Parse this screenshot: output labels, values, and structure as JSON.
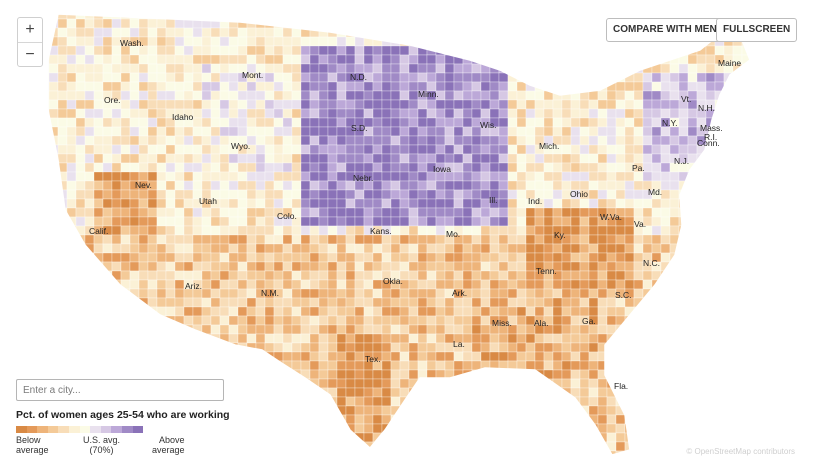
{
  "zoom": {
    "in_label": "+",
    "out_label": "−"
  },
  "buttons": {
    "compare": "COMPARE WITH MEN",
    "fullscreen": "FULLSCREEN"
  },
  "search": {
    "placeholder": "Enter a city..."
  },
  "legend": {
    "title": "Pct. of women ages 25-54 who are working",
    "low_line1": "Below",
    "low_line2": "average",
    "mid_line1": "U.S. avg.",
    "mid_line2": "(70%)",
    "high_line1": "Above",
    "high_line2": "average",
    "colors": [
      "#d98a45",
      "#e49a5a",
      "#eeb47a",
      "#f4ca98",
      "#f8ddb8",
      "#fbf1d6",
      "#fbfbe6",
      "#e9e1ee",
      "#d6c8e4",
      "#bca8d8",
      "#a08ac6",
      "#8a72b8"
    ]
  },
  "attribution": "© OpenStreetMap contributors",
  "states": [
    {
      "name": "Wash."
    },
    {
      "name": "Mont."
    },
    {
      "name": "N.D."
    },
    {
      "name": "Minn."
    },
    {
      "name": "Maine"
    },
    {
      "name": "Vt."
    },
    {
      "name": "N.H."
    },
    {
      "name": "N.Y."
    },
    {
      "name": "Mass."
    },
    {
      "name": "R.I."
    },
    {
      "name": "Conn."
    },
    {
      "name": "N.J."
    },
    {
      "name": "Ore."
    },
    {
      "name": "Idaho"
    },
    {
      "name": "S.D."
    },
    {
      "name": "Wis."
    },
    {
      "name": "Mich."
    },
    {
      "name": "Wyo."
    },
    {
      "name": "Nebr."
    },
    {
      "name": "Iowa"
    },
    {
      "name": "Pa."
    },
    {
      "name": "Ohio"
    },
    {
      "name": "Md."
    },
    {
      "name": "Nev."
    },
    {
      "name": "Utah"
    },
    {
      "name": "Ill."
    },
    {
      "name": "Ind."
    },
    {
      "name": "W.Va."
    },
    {
      "name": "Colo."
    },
    {
      "name": "Calif."
    },
    {
      "name": "Kans."
    },
    {
      "name": "Mo."
    },
    {
      "name": "Ky."
    },
    {
      "name": "Va."
    },
    {
      "name": "N.C."
    },
    {
      "name": "Tenn."
    },
    {
      "name": "Ariz."
    },
    {
      "name": "N.M."
    },
    {
      "name": "Okla."
    },
    {
      "name": "Ark."
    },
    {
      "name": "S.C."
    },
    {
      "name": "Miss."
    },
    {
      "name": "Ala."
    },
    {
      "name": "Ga."
    },
    {
      "name": "La."
    },
    {
      "name": "Tex."
    },
    {
      "name": "Fla."
    }
  ]
}
